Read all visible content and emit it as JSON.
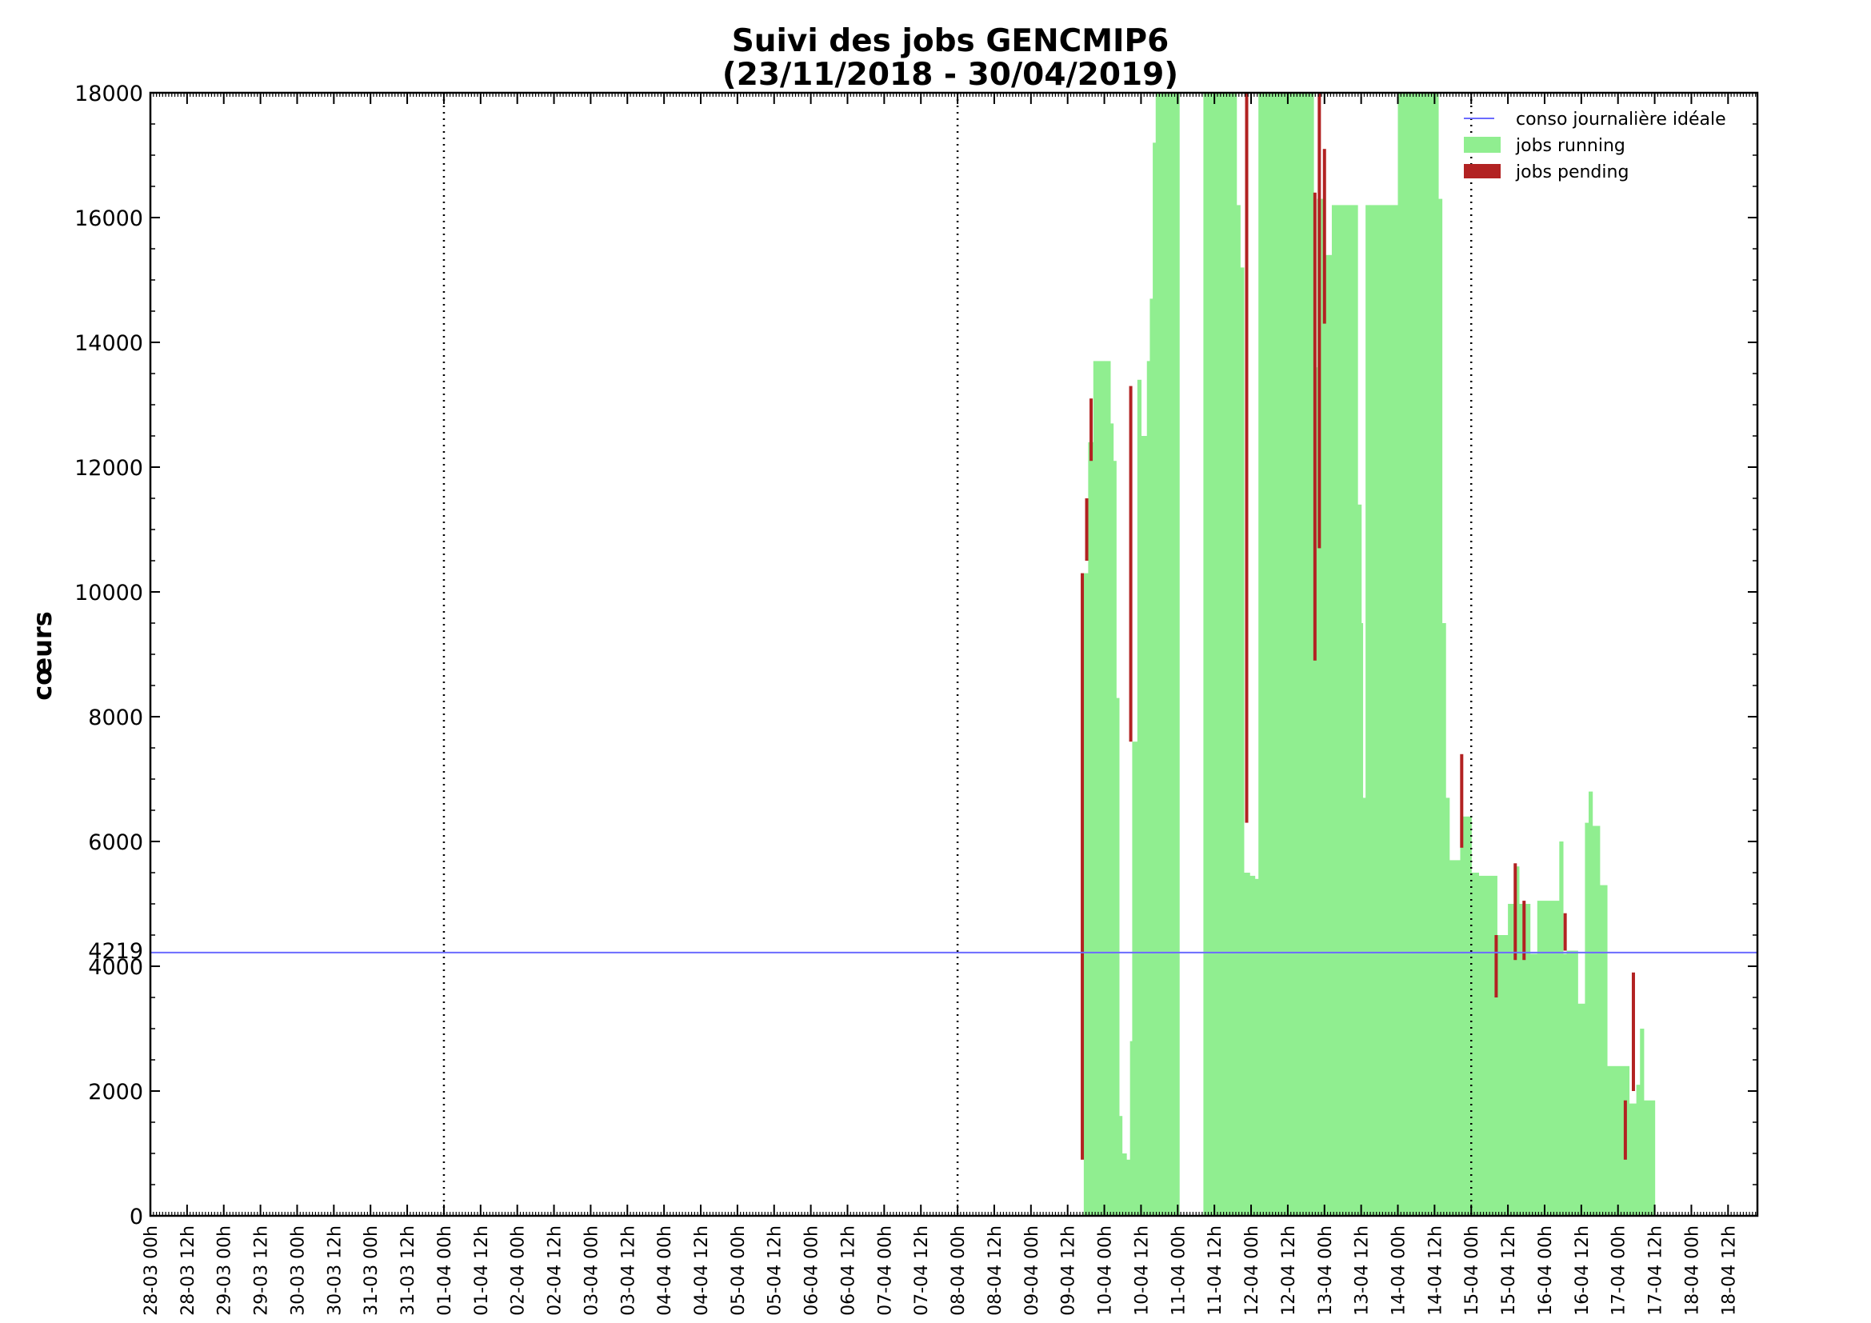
{
  "chart_data": {
    "type": "bar",
    "title": "Suivi des jobs GENCMIP6",
    "subtitle": "(23/11/2018 - 30/04/2019)",
    "ylabel": "cœurs",
    "ylim": [
      0,
      18000
    ],
    "y_ticks": [
      "0",
      "2000",
      "4000",
      "6000",
      "8000",
      "10000",
      "12000",
      "14000",
      "16000",
      "18000"
    ],
    "y_ref_label": "4219",
    "ideal_line_value": 4219,
    "x_range_days": [
      0,
      21.9
    ],
    "x_ticks": [
      "28-03 00h",
      "28-03 12h",
      "29-03 00h",
      "29-03 12h",
      "30-03 00h",
      "30-03 12h",
      "31-03 00h",
      "31-03 12h",
      "01-04 00h",
      "01-04 12h",
      "02-04 00h",
      "02-04 12h",
      "03-04 00h",
      "03-04 12h",
      "04-04 00h",
      "04-04 12h",
      "05-04 00h",
      "05-04 12h",
      "06-04 00h",
      "06-04 12h",
      "07-04 00h",
      "07-04 12h",
      "08-04 00h",
      "08-04 12h",
      "09-04 00h",
      "09-04 12h",
      "10-04 00h",
      "10-04 12h",
      "11-04 00h",
      "11-04 12h",
      "12-04 00h",
      "12-04 12h",
      "13-04 00h",
      "13-04 12h",
      "14-04 00h",
      "14-04 12h",
      "15-04 00h",
      "15-04 12h",
      "16-04 00h",
      "16-04 12h",
      "17-04 00h",
      "17-04 12h",
      "18-04 00h",
      "18-04 12h"
    ],
    "week_separators_days": [
      4,
      11,
      18
    ],
    "grid": false,
    "legend_position": "top-right",
    "legend": [
      "conso journalière idéale",
      "jobs running",
      "jobs pending"
    ],
    "colors": {
      "ideal": "#6b6bff",
      "running": "#90ee90",
      "pending": "#b22222"
    },
    "running": [
      {
        "day": 12.72,
        "value": 10300
      },
      {
        "day": 12.78,
        "value": 12400
      },
      {
        "day": 12.85,
        "value": 13700
      },
      {
        "day": 13.0,
        "value": 13700
      },
      {
        "day": 13.08,
        "value": 12700
      },
      {
        "day": 13.12,
        "value": 12100
      },
      {
        "day": 13.16,
        "value": 8300
      },
      {
        "day": 13.2,
        "value": 1600
      },
      {
        "day": 13.24,
        "value": 1000
      },
      {
        "day": 13.3,
        "value": 900
      },
      {
        "day": 13.35,
        "value": 2800
      },
      {
        "day": 13.38,
        "value": 7600
      },
      {
        "day": 13.45,
        "value": 13400
      },
      {
        "day": 13.5,
        "value": 12500
      },
      {
        "day": 13.58,
        "value": 13700
      },
      {
        "day": 13.62,
        "value": 14700
      },
      {
        "day": 13.66,
        "value": 17200
      },
      {
        "day": 13.7,
        "value": 18000
      },
      {
        "day": 14.0,
        "value": 18000
      },
      {
        "day": 14.02,
        "value": 0
      },
      {
        "day": 14.35,
        "value": 18000
      },
      {
        "day": 14.8,
        "value": 16200
      },
      {
        "day": 14.85,
        "value": 15200
      },
      {
        "day": 14.9,
        "value": 5500
      },
      {
        "day": 14.98,
        "value": 5450
      },
      {
        "day": 15.05,
        "value": 5400
      },
      {
        "day": 15.1,
        "value": 18000
      },
      {
        "day": 15.85,
        "value": 13600
      },
      {
        "day": 15.9,
        "value": 16300
      },
      {
        "day": 16.0,
        "value": 15400
      },
      {
        "day": 16.1,
        "value": 16200
      },
      {
        "day": 16.45,
        "value": 11400
      },
      {
        "day": 16.5,
        "value": 9500
      },
      {
        "day": 16.52,
        "value": 6700
      },
      {
        "day": 16.56,
        "value": 16200
      },
      {
        "day": 16.62,
        "value": 16200
      },
      {
        "day": 17.0,
        "value": 18000
      },
      {
        "day": 17.55,
        "value": 16300
      },
      {
        "day": 17.6,
        "value": 9500
      },
      {
        "day": 17.65,
        "value": 6700
      },
      {
        "day": 17.7,
        "value": 5700
      },
      {
        "day": 17.85,
        "value": 6400
      },
      {
        "day": 18.0,
        "value": 5500
      },
      {
        "day": 18.1,
        "value": 5450
      },
      {
        "day": 18.35,
        "value": 4500
      },
      {
        "day": 18.5,
        "value": 5000
      },
      {
        "day": 18.6,
        "value": 5600
      },
      {
        "day": 18.65,
        "value": 5000
      },
      {
        "day": 18.8,
        "value": 4200
      },
      {
        "day": 18.9,
        "value": 5050
      },
      {
        "day": 19.2,
        "value": 6000
      },
      {
        "day": 19.25,
        "value": 4200
      },
      {
        "day": 19.3,
        "value": 4250
      },
      {
        "day": 19.45,
        "value": 3400
      },
      {
        "day": 19.55,
        "value": 6300
      },
      {
        "day": 19.6,
        "value": 6800
      },
      {
        "day": 19.65,
        "value": 6250
      },
      {
        "day": 19.75,
        "value": 5300
      },
      {
        "day": 19.85,
        "value": 2400
      },
      {
        "day": 20.15,
        "value": 1800
      },
      {
        "day": 20.25,
        "value": 2100
      },
      {
        "day": 20.3,
        "value": 3000
      },
      {
        "day": 20.35,
        "value": 1850
      }
    ],
    "running_end_day": 20.5,
    "pending": [
      {
        "day": 12.7,
        "low": 900,
        "high": 10300
      },
      {
        "day": 12.76,
        "low": 10500,
        "high": 11500
      },
      {
        "day": 12.82,
        "low": 12100,
        "high": 13100
      },
      {
        "day": 13.36,
        "low": 7600,
        "high": 13300
      },
      {
        "day": 14.94,
        "low": 6300,
        "high": 18000
      },
      {
        "day": 15.87,
        "low": 8900,
        "high": 16400
      },
      {
        "day": 15.93,
        "low": 10700,
        "high": 18000
      },
      {
        "day": 16.0,
        "low": 14300,
        "high": 17100
      },
      {
        "day": 17.87,
        "low": 5900,
        "high": 7400
      },
      {
        "day": 18.34,
        "low": 3500,
        "high": 4500
      },
      {
        "day": 18.6,
        "low": 4100,
        "high": 5650
      },
      {
        "day": 18.72,
        "low": 4100,
        "high": 5050
      },
      {
        "day": 19.28,
        "low": 4250,
        "high": 4850
      },
      {
        "day": 20.1,
        "low": 900,
        "high": 1850
      },
      {
        "day": 20.21,
        "low": 2000,
        "high": 3900
      }
    ]
  }
}
